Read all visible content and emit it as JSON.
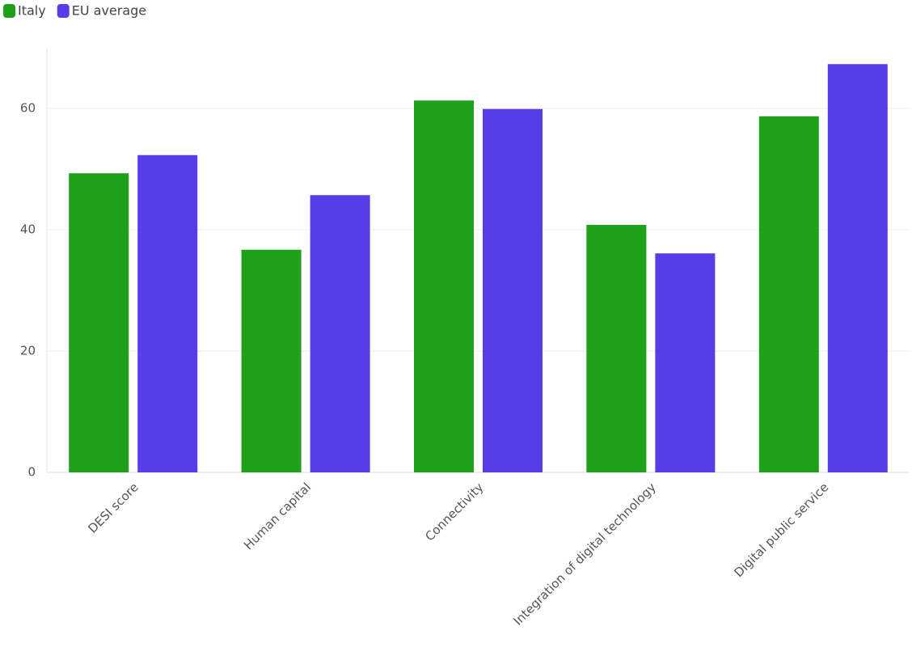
{
  "chart_data": {
    "type": "bar",
    "categories": [
      "DESI score",
      "Human capital",
      "Connectivity",
      "Integration of digital technology",
      "Digital public service"
    ],
    "series": [
      {
        "name": "Italy",
        "color": "#1fa01a",
        "values": [
          49.3,
          36.7,
          61.3,
          40.8,
          58.7
        ]
      },
      {
        "name": "EU average",
        "color": "#553ee8",
        "values": [
          52.3,
          45.7,
          59.9,
          36.1,
          67.3
        ]
      }
    ],
    "ylim": [
      0,
      70
    ],
    "yticks": [
      0,
      20,
      40,
      60
    ],
    "grid": true
  }
}
